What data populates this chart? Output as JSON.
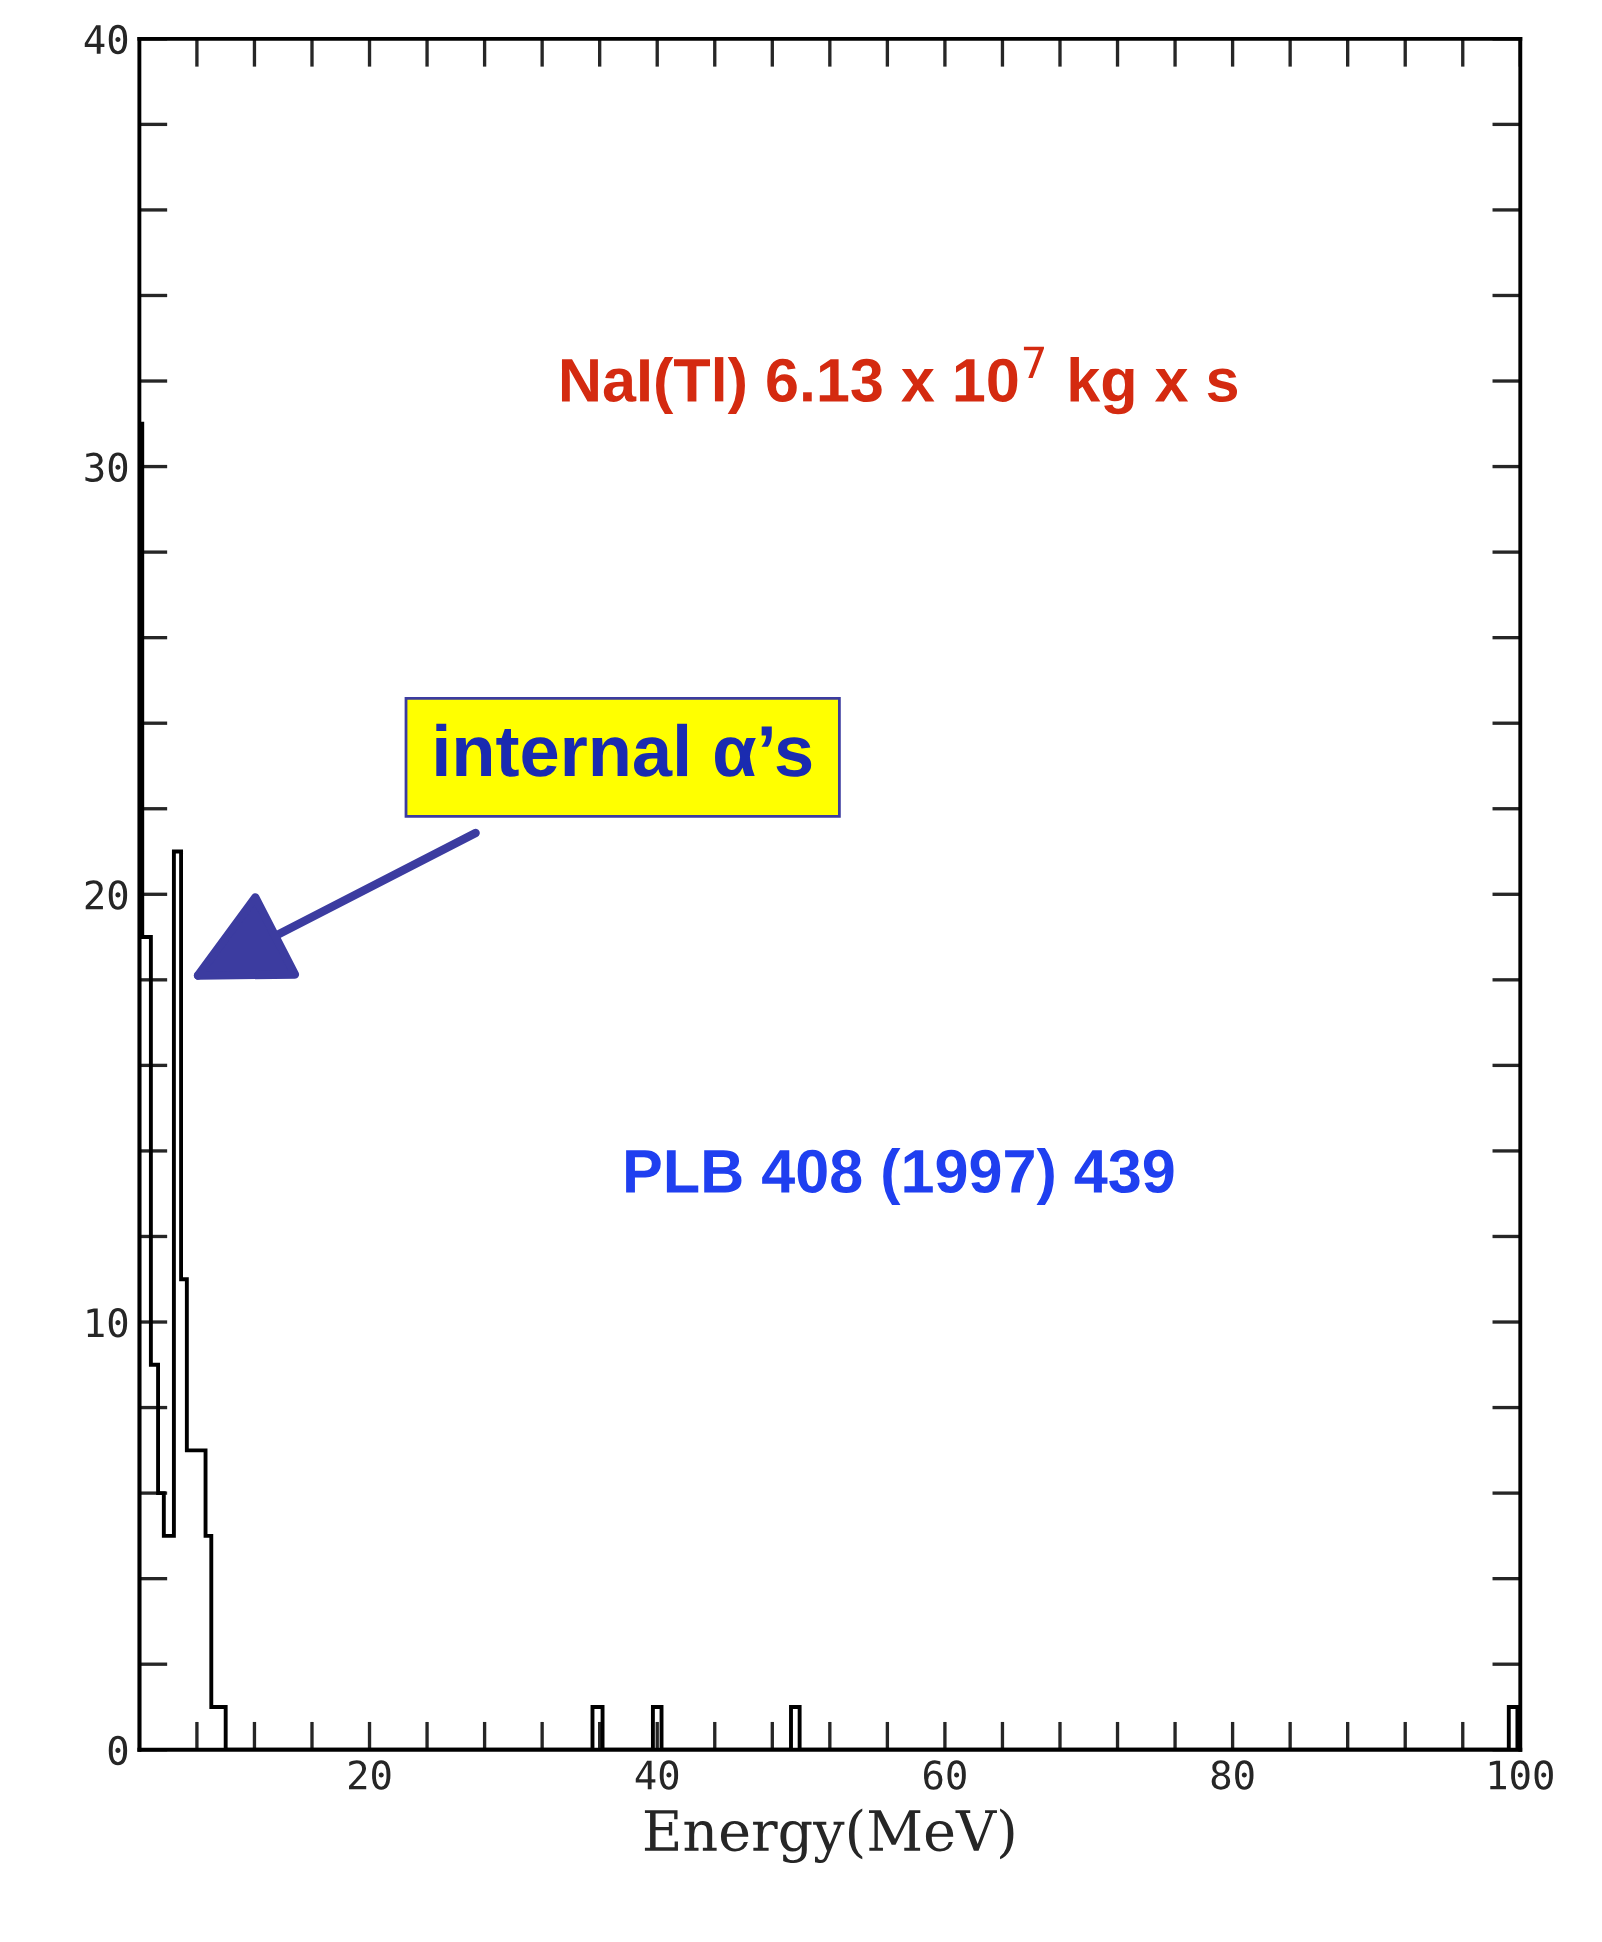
{
  "chart_data": {
    "type": "histogram",
    "xlabel": "Energy(MeV)",
    "bins": [
      4,
      4.2,
      4.8,
      5.3,
      5.7,
      6.4,
      6.9,
      7.3,
      8.6,
      9,
      10,
      35.5,
      36.2,
      39.7,
      40.3,
      49.3,
      49.9,
      99.2,
      99.8,
      100
    ],
    "values": [
      31,
      19,
      9,
      6,
      5,
      21,
      11,
      7,
      5,
      1,
      0,
      1,
      0,
      1,
      0,
      1,
      0,
      1,
      0
    ],
    "color": "#000000",
    "xlim": [
      4,
      100
    ],
    "xticks": [
      {
        "value": 8,
        "label": null
      },
      {
        "value": 12,
        "label": null
      },
      {
        "value": 16,
        "label": null
      },
      20,
      {
        "value": 24,
        "label": null
      },
      {
        "value": 28,
        "label": null
      },
      {
        "value": 32,
        "label": null
      },
      {
        "value": 36,
        "label": null
      },
      40,
      {
        "value": 44,
        "label": null
      },
      {
        "value": 48,
        "label": null
      },
      {
        "value": 52,
        "label": null
      },
      {
        "value": 56,
        "label": null
      },
      60,
      {
        "value": 64,
        "label": null
      },
      {
        "value": 68,
        "label": null
      },
      {
        "value": 72,
        "label": null
      },
      {
        "value": 76,
        "label": null
      },
      80,
      {
        "value": 84,
        "label": null
      },
      {
        "value": 88,
        "label": null
      },
      {
        "value": 92,
        "label": null
      },
      {
        "value": 96,
        "label": null
      },
      100
    ],
    "ylim": [
      0,
      40
    ],
    "yticks": [
      0,
      {
        "value": 2,
        "label": null
      },
      {
        "value": 4,
        "label": null
      },
      {
        "value": 6,
        "label": null
      },
      {
        "value": 8,
        "label": null
      },
      10,
      {
        "value": 12,
        "label": null
      },
      {
        "value": 14,
        "label": null
      },
      {
        "value": 16,
        "label": null
      },
      {
        "value": 18,
        "label": null
      },
      20,
      {
        "value": 22,
        "label": null
      },
      {
        "value": 24,
        "label": null
      },
      {
        "value": 26,
        "label": null
      },
      {
        "value": 28,
        "label": null
      },
      30,
      {
        "value": 32,
        "label": null
      },
      {
        "value": 34,
        "label": null
      },
      {
        "value": 36,
        "label": null
      },
      {
        "value": 38,
        "label": null
      },
      40
    ],
    "grid": false,
    "annotations": [
      {
        "text": "NaI(Tl) 6.13 x 10$^{7}$ kg x s"
      },
      {
        "text": "internal α’s",
        "x": 7.5,
        "y": 18
      },
      {
        "text": "PLB 408 (1997) 439"
      }
    ]
  }
}
